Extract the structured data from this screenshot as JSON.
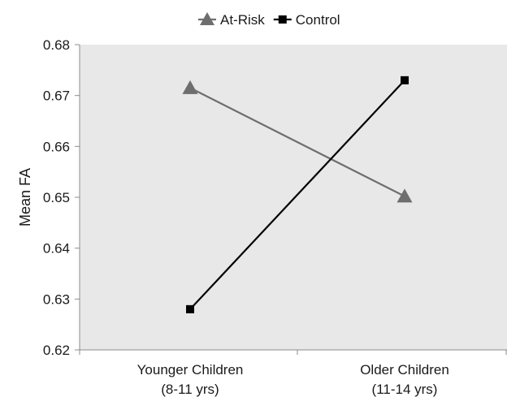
{
  "chart_data": {
    "type": "line",
    "title": "",
    "xlabel": "",
    "ylabel": "Mean FA",
    "categories": [
      [
        "Younger Children",
        "(8-11 yrs)"
      ],
      [
        "Older Children",
        "(11-14 yrs)"
      ]
    ],
    "ylim": [
      0.62,
      0.68
    ],
    "yticks": [
      0.62,
      0.63,
      0.64,
      0.65,
      0.66,
      0.67,
      0.68
    ],
    "ytick_labels": [
      "0.62",
      "0.63",
      "0.64",
      "0.65",
      "0.66",
      "0.67",
      "0.68"
    ],
    "grid": false,
    "legend_position": "top",
    "series": [
      {
        "name": "At-Risk",
        "values": [
          0.6715,
          0.6502
        ],
        "marker": "triangle",
        "color": "#6e6e6e"
      },
      {
        "name": "Control",
        "values": [
          0.628,
          0.673
        ],
        "marker": "square",
        "color": "#000000"
      }
    ]
  },
  "colors": {
    "plot_background": "#e8e8e8",
    "axis": "#8c8c8c"
  }
}
